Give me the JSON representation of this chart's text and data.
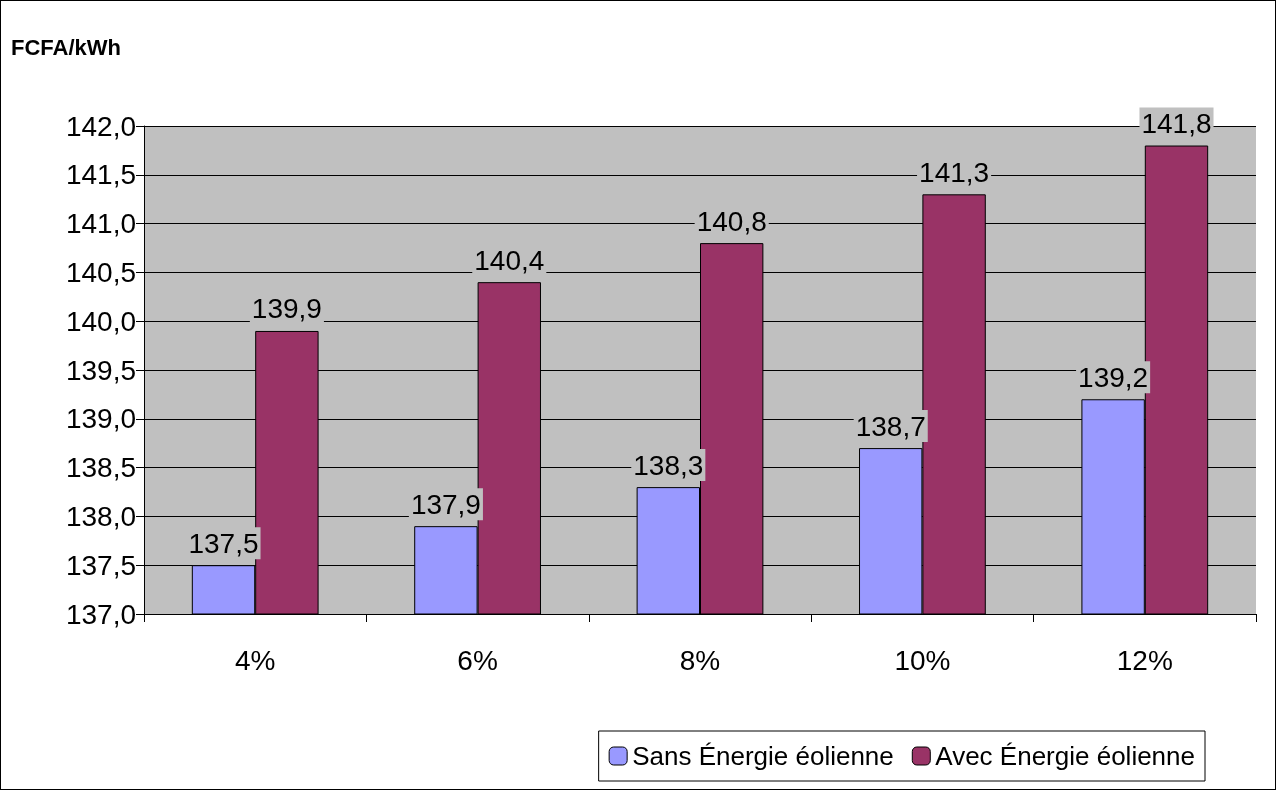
{
  "chart_data": {
    "type": "bar",
    "ylabel": "FCFA/kWh",
    "categories": [
      "4%",
      "6%",
      "8%",
      "10%",
      "12%"
    ],
    "series": [
      {
        "name": "Sans Énergie éolienne",
        "color": "#9999ff",
        "values": [
          137.5,
          137.9,
          138.3,
          138.7,
          139.2
        ],
        "value_labels": [
          "137,5",
          "137,9",
          "138,3",
          "138,7",
          "139,2"
        ]
      },
      {
        "name": "Avec Énergie éolienne",
        "color": "#993366",
        "values": [
          139.9,
          140.4,
          140.8,
          141.3,
          141.8
        ],
        "value_labels": [
          "139,9",
          "140,4",
          "140,8",
          "141,3",
          "141,8"
        ]
      }
    ],
    "ylim": [
      137,
      142
    ],
    "yticks": [
      {
        "value": 137,
        "label": "137,0"
      },
      {
        "value": 137.5,
        "label": "137,5"
      },
      {
        "value": 138,
        "label": "138,0"
      },
      {
        "value": 138.5,
        "label": "138,5"
      },
      {
        "value": 139,
        "label": "139,0"
      },
      {
        "value": 139.5,
        "label": "139,5"
      },
      {
        "value": 140,
        "label": "140,0"
      },
      {
        "value": 140.5,
        "label": "140,5"
      },
      {
        "value": 141,
        "label": "141,0"
      },
      {
        "value": 141.5,
        "label": "141,5"
      },
      {
        "value": 142,
        "label": "142,0"
      }
    ],
    "grid": true,
    "legend": "bottom right"
  }
}
